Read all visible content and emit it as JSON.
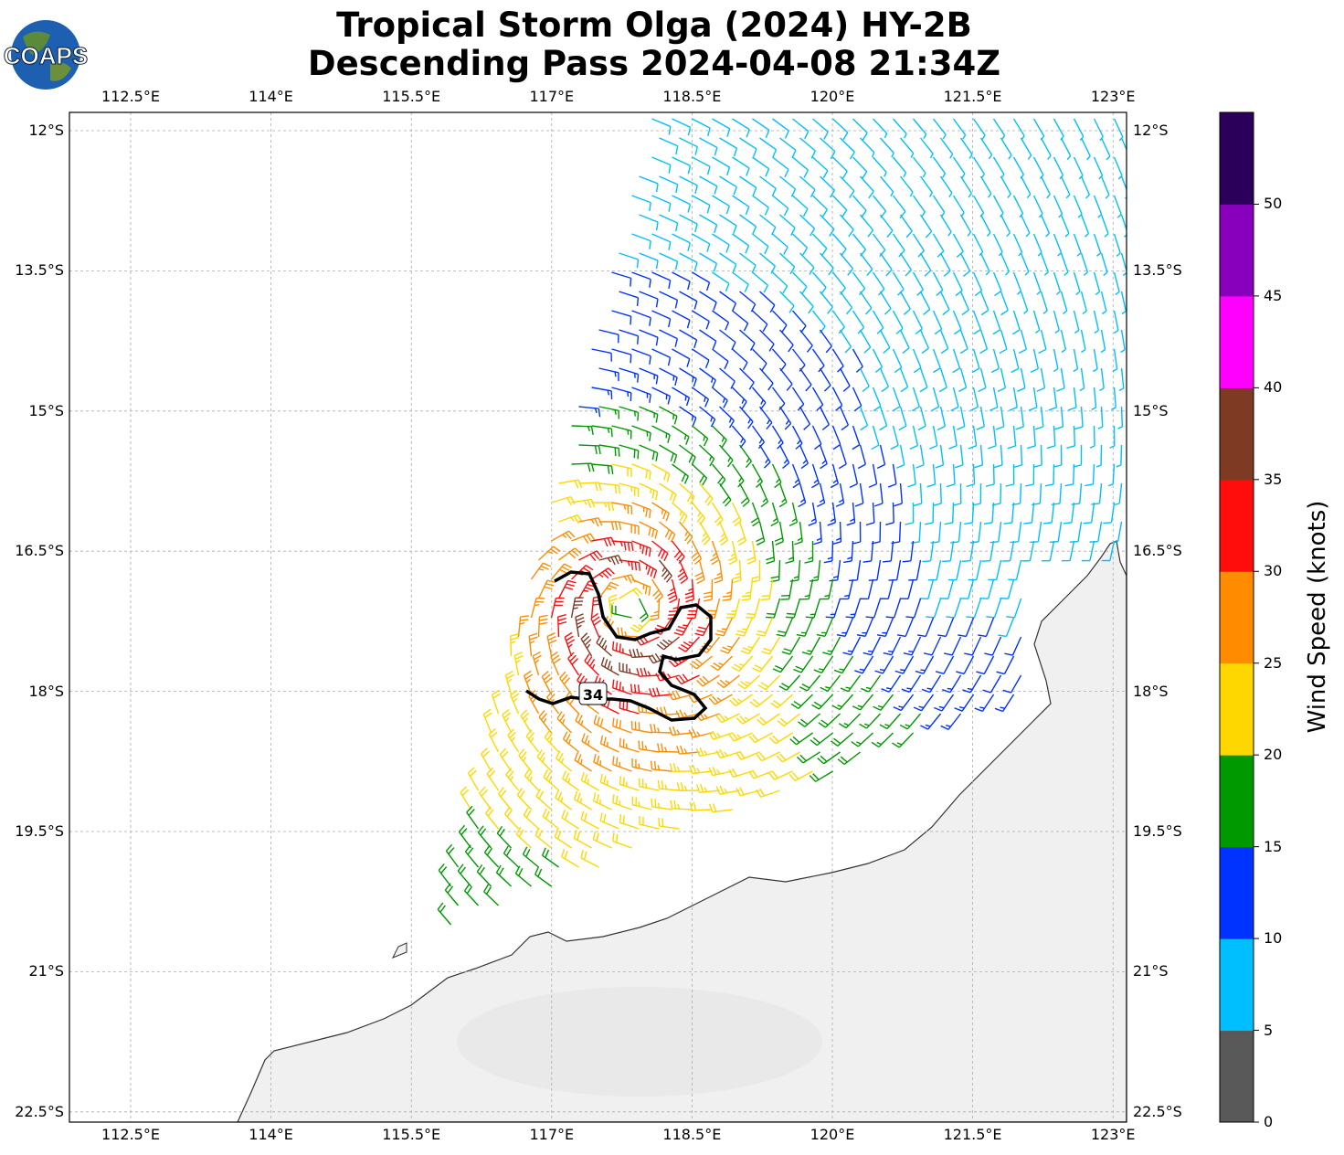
{
  "title": {
    "line1": "Tropical Storm Olga (2024) HY-2B",
    "line2": "Descending Pass 2024-04-08 21:34Z"
  },
  "logo": {
    "text": "COAPS"
  },
  "lon_labels": [
    "112.5°E",
    "114°E",
    "115.5°E",
    "117°E",
    "118.5°E",
    "120°E",
    "121.5°E",
    "123°E"
  ],
  "lat_labels": [
    "12°S",
    "13.5°S",
    "15°S",
    "16.5°S",
    "18°S",
    "19.5°S",
    "21°S",
    "22.5°S"
  ],
  "colorbar": {
    "label": "Wind Speed (knots)",
    "ticks": [
      "0",
      "5",
      "10",
      "15",
      "20",
      "25",
      "30",
      "35",
      "40",
      "45",
      "50"
    ],
    "colors": [
      "#595959",
      "#00bfff",
      "#0033ff",
      "#009900",
      "#ffd700",
      "#ff8c00",
      "#ff0d0d",
      "#7f3a24",
      "#ff00ff",
      "#8800bb",
      "#2b005a"
    ]
  },
  "contour": {
    "label": "34",
    "level_knots": 34
  },
  "storm_center": {
    "lon": 117.8,
    "lat": -17.2
  }
}
